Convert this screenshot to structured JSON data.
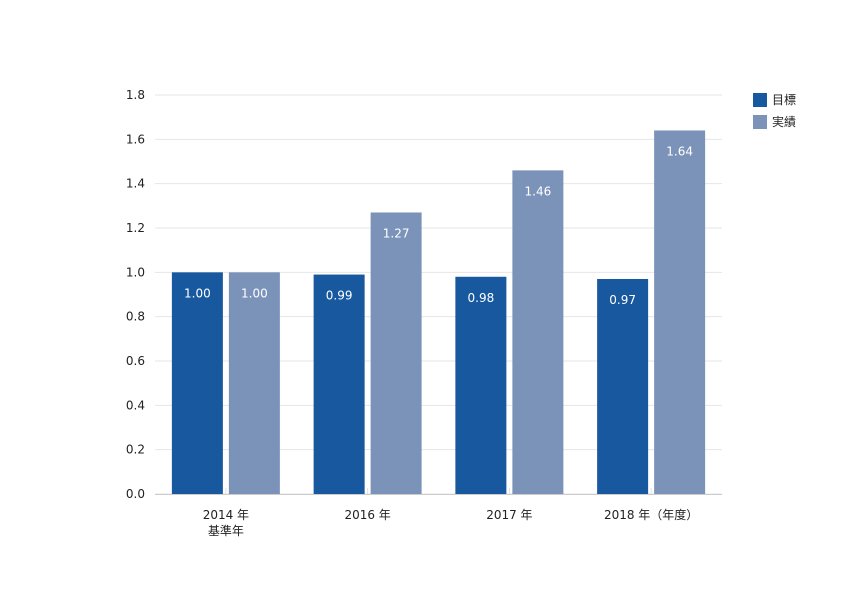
{
  "chart_data": {
    "type": "bar",
    "categories": [
      [
        "2014 年",
        "基準年"
      ],
      [
        "2016 年"
      ],
      [
        "2017 年"
      ],
      [
        "2018 年（年度）"
      ]
    ],
    "series": [
      {
        "name": "目標",
        "color": "#17589f",
        "values": [
          1.0,
          0.99,
          0.98,
          0.97
        ],
        "labels": [
          "1.00",
          "0.99",
          "0.98",
          "0.97"
        ]
      },
      {
        "name": "実績",
        "color": "#7b93b9",
        "values": [
          1.0,
          1.27,
          1.46,
          1.64
        ],
        "labels": [
          "1.00",
          "1.27",
          "1.46",
          "1.64"
        ]
      }
    ],
    "ylim": [
      0,
      1.8
    ],
    "yticks": [
      "0.0",
      "0.2",
      "0.4",
      "0.6",
      "0.8",
      "1.0",
      "1.2",
      "1.4",
      "1.6",
      "1.8"
    ],
    "grid": true,
    "legend_position": "top-right"
  }
}
